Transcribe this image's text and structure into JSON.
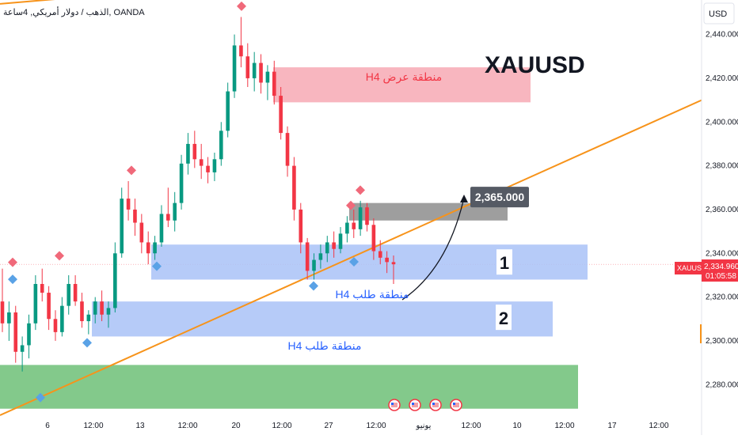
{
  "header": {
    "symbol_line": "الذهب / دولار أمريكي, 4ساعة, OANDA"
  },
  "currency_button": "USD",
  "price_label": {
    "value": "2,334.960",
    "countdown": "01:05:58",
    "symbol": "XAUUSD"
  },
  "chart_data": {
    "type": "candlestick",
    "title": "XAUUSD",
    "ylim": [
      2265,
      2465
    ],
    "y_ticks": [
      "2,280.000",
      "2,300.000",
      "2,320.000",
      "2,340.000",
      "2,360.000",
      "2,380.000",
      "2,400.000",
      "2,420.000",
      "2,440.000"
    ],
    "y_tick_values": [
      2280,
      2300,
      2320,
      2340,
      2360,
      2380,
      2400,
      2420,
      2440
    ],
    "x_ticks": [
      "6",
      "12:00",
      "13",
      "12:00",
      "20",
      "12:00",
      "27",
      "12:00",
      "يونيو",
      "12:00",
      "10",
      "12:00",
      "17",
      "12:00"
    ],
    "last_price": 2334.96,
    "candle_color_up": "#089981",
    "candle_color_down": "#f23645",
    "candles_ohlc": [
      [
        2318,
        2333,
        2304,
        2308
      ],
      [
        2308,
        2318,
        2300,
        2313
      ],
      [
        2313,
        2316,
        2290,
        2295
      ],
      [
        2295,
        2302,
        2286,
        2298
      ],
      [
        2298,
        2312,
        2292,
        2308
      ],
      [
        2308,
        2330,
        2305,
        2326
      ],
      [
        2326,
        2333,
        2318,
        2322
      ],
      [
        2322,
        2325,
        2305,
        2310
      ],
      [
        2310,
        2314,
        2300,
        2304
      ],
      [
        2304,
        2320,
        2302,
        2316
      ],
      [
        2316,
        2330,
        2312,
        2326
      ],
      [
        2326,
        2330,
        2316,
        2318
      ],
      [
        2318,
        2322,
        2306,
        2309
      ],
      [
        2309,
        2314,
        2303,
        2312
      ],
      [
        2312,
        2320,
        2308,
        2318
      ],
      [
        2318,
        2323,
        2309,
        2312
      ],
      [
        2312,
        2318,
        2306,
        2315
      ],
      [
        2315,
        2345,
        2313,
        2340
      ],
      [
        2340,
        2370,
        2338,
        2365
      ],
      [
        2365,
        2373,
        2355,
        2360
      ],
      [
        2360,
        2365,
        2348,
        2354
      ],
      [
        2354,
        2358,
        2340,
        2345
      ],
      [
        2345,
        2350,
        2335,
        2340
      ],
      [
        2340,
        2348,
        2337,
        2345
      ],
      [
        2345,
        2362,
        2343,
        2358
      ],
      [
        2358,
        2370,
        2352,
        2355
      ],
      [
        2355,
        2368,
        2350,
        2363
      ],
      [
        2363,
        2385,
        2360,
        2381
      ],
      [
        2381,
        2395,
        2376,
        2390
      ],
      [
        2390,
        2396,
        2379,
        2383
      ],
      [
        2383,
        2390,
        2374,
        2380
      ],
      [
        2380,
        2384,
        2372,
        2377
      ],
      [
        2377,
        2386,
        2373,
        2383
      ],
      [
        2383,
        2400,
        2380,
        2396
      ],
      [
        2396,
        2418,
        2393,
        2414
      ],
      [
        2414,
        2440,
        2411,
        2435
      ],
      [
        2435,
        2448,
        2425,
        2430
      ],
      [
        2430,
        2436,
        2416,
        2420
      ],
      [
        2420,
        2432,
        2414,
        2427
      ],
      [
        2427,
        2431,
        2413,
        2418
      ],
      [
        2418,
        2426,
        2410,
        2423
      ],
      [
        2423,
        2428,
        2408,
        2412
      ],
      [
        2412,
        2416,
        2392,
        2395
      ],
      [
        2395,
        2398,
        2375,
        2380
      ],
      [
        2380,
        2384,
        2355,
        2360
      ],
      [
        2360,
        2363,
        2340,
        2345
      ],
      [
        2345,
        2347,
        2328,
        2332
      ],
      [
        2332,
        2340,
        2328,
        2337
      ],
      [
        2337,
        2344,
        2333,
        2340
      ],
      [
        2340,
        2348,
        2336,
        2345
      ],
      [
        2345,
        2350,
        2338,
        2342
      ],
      [
        2342,
        2352,
        2340,
        2349
      ],
      [
        2349,
        2357,
        2345,
        2354
      ],
      [
        2354,
        2360,
        2347,
        2351
      ],
      [
        2351,
        2364,
        2348,
        2361
      ],
      [
        2361,
        2363,
        2350,
        2353
      ],
      [
        2353,
        2356,
        2337,
        2341
      ],
      [
        2341,
        2346,
        2335,
        2338
      ],
      [
        2338,
        2341,
        2331,
        2336
      ],
      [
        2336,
        2339,
        2326,
        2335
      ]
    ],
    "candles_x_range": [
      3,
      497
    ],
    "supply_zone": {
      "label": "H4 منطقة عرض",
      "top": 2425,
      "bottom": 2409,
      "x_from": "2024-05-21",
      "color": "#f7a9b4"
    },
    "demand_zone_1": {
      "label": "H4 منطقة طلب",
      "top": 2344,
      "bottom": 2328,
      "number": "1",
      "color": "#a9c2f7"
    },
    "demand_zone_2": {
      "label": "H4 منطقة طلب",
      "top": 2318,
      "bottom": 2302,
      "number": "2",
      "color": "#a9c2f7"
    },
    "green_zone": {
      "top": 2289,
      "bottom": 2269,
      "color": "#83c98b"
    },
    "gray_zone": {
      "top": 2363,
      "bottom": 2355,
      "color": "#9e9e9e"
    },
    "target_label": "2,365.000",
    "target_value": 2365,
    "trend_lines": [
      {
        "name": "upper-channel",
        "y_start": 2454,
        "y_end": 2481,
        "color": "#f7931a"
      },
      {
        "name": "lower-trendline",
        "y_start": 2266,
        "y_end": 2410,
        "color": "#f7931a"
      }
    ],
    "markers_up": [
      [
        16,
        2331
      ],
      [
        110,
        2302
      ],
      [
        198,
        2337
      ],
      [
        396,
        2328
      ],
      [
        447,
        2339
      ],
      [
        51,
        2277
      ]
    ],
    "markers_down": [
      [
        16,
        2333
      ],
      [
        75,
        2336
      ],
      [
        166,
        2375
      ],
      [
        305,
        2450
      ],
      [
        443,
        2359
      ],
      [
        455,
        2366
      ]
    ],
    "event_flags": 4
  }
}
